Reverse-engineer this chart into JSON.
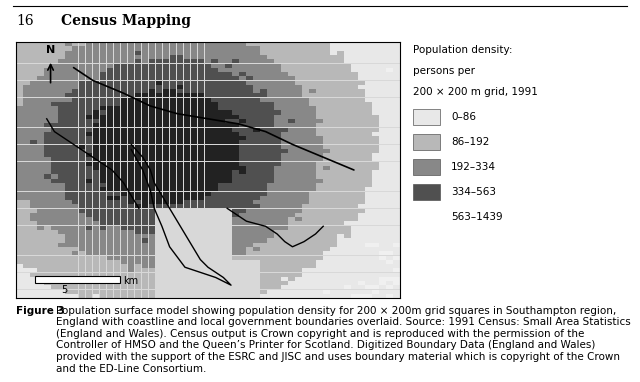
{
  "page_header_num": "16",
  "page_header_text": "Census Mapping",
  "figure_num": "Figure 3",
  "figure_caption": "Population surface model showing population density for 200 × 200m grid squares in Southampton region, England with coastline and local government boundaries overlaid. Source: 1991 Census: Small Area Statistics (England and Wales). Census output is Crown copyright and is reproduced with the permission of the Controller of HMSO and the Queen’s Printer for Scotland. Digitized Boundary Data (England and Wales) provided with the support of the ESRC and JISC and uses boundary material which is copyright of the Crown and the ED-Line Consortium.",
  "legend_title_lines": [
    "Population density:",
    "persons per",
    "200 × 200 m grid, 1991"
  ],
  "legend_entries": [
    {
      "label": "0–86",
      "color": "#e8e8e8"
    },
    {
      "label": "86–192",
      "color": "#b8b8b8"
    },
    {
      "label": "192–334",
      "color": "#888888"
    },
    {
      "label": "334–563",
      "color": "#505050"
    },
    {
      "label": "563–1439",
      "color": "#222222"
    }
  ],
  "scale_bar_label": "5",
  "scale_bar_unit": "km",
  "map_bg": "#f0f0f0",
  "map_border_color": "#000000",
  "header_line_color": "#000000",
  "body_bg": "#ffffff",
  "text_color": "#000000",
  "caption_fontsize": 7.5,
  "header_fontsize": 10,
  "legend_title_fontsize": 7.5,
  "legend_entry_fontsize": 7.5
}
